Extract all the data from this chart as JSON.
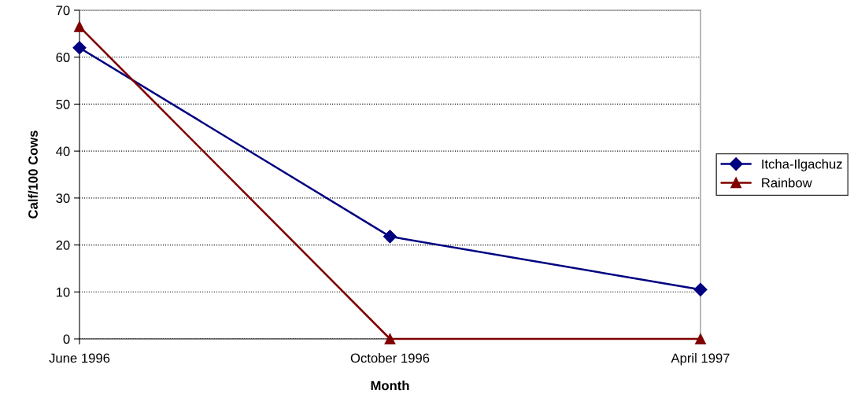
{
  "chart_data": {
    "type": "line",
    "xlabel": "Month",
    "ylabel": "Calf/100 Cows",
    "categories": [
      "June 1996",
      "October 1996",
      "April 1997"
    ],
    "series": [
      {
        "name": "Itcha-Ilgachuz",
        "color": "#000080",
        "marker": "diamond",
        "values": [
          62.0,
          21.8,
          10.5
        ]
      },
      {
        "name": "Rainbow",
        "color": "#800000",
        "marker": "triangle",
        "values": [
          66.5,
          0,
          0
        ]
      }
    ],
    "ylim": [
      0,
      70
    ],
    "yticks": [
      0,
      10,
      20,
      30,
      40,
      50,
      60,
      70
    ],
    "grid": "y",
    "legend": "right",
    "line_style": "solid"
  }
}
